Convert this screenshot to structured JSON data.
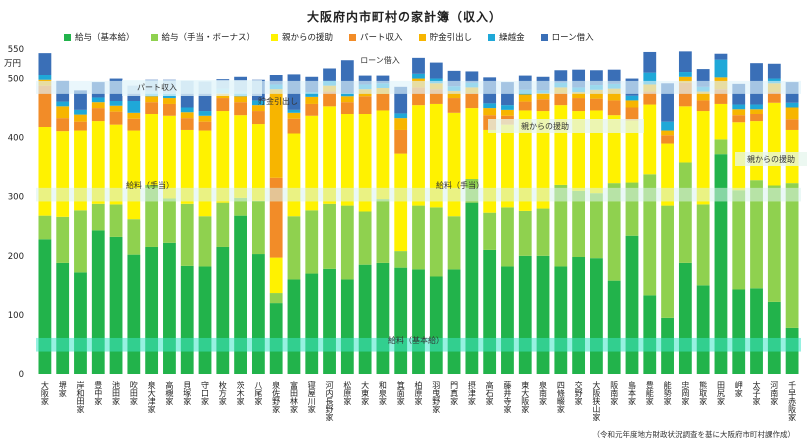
{
  "title": "大阪府内市町村の家計簿（収入）",
  "source_note": "（令和元年度地方財政状況調査を基に大阪府市町村課作成）",
  "unit_label": "万円",
  "colors": {
    "salary_base": "#22b34b",
    "salary_allowance": "#8fd14f",
    "parent_support": "#fff200",
    "part_income": "#f28c28",
    "savings_withdrawal": "#f7b500",
    "carryover": "#1fa8d8",
    "loan": "#3a6fb7"
  },
  "chart_data": {
    "type": "bar",
    "stacked": true,
    "title": "大阪府内市町村の家計簿（収入）",
    "ylabel": "万円",
    "ylim": [
      0,
      550
    ],
    "yticks": [
      0,
      100,
      200,
      300,
      400,
      500,
      550
    ],
    "grid": false,
    "legend_position": "top",
    "categories": [
      "大阪家",
      "堺家",
      "岸和田家",
      "豊中家",
      "池田家",
      "吹田家",
      "泉大津家",
      "高槻家",
      "貝塚家",
      "守口家",
      "枚方家",
      "茨木家",
      "八尾家",
      "泉佐野家",
      "富田林家",
      "寝屋川家",
      "河内長野家",
      "松原家",
      "大東家",
      "和泉家",
      "箕面家",
      "柏原家",
      "羽曳野家",
      "門真家",
      "摂津家",
      "高石家",
      "藤井寺家",
      "東大阪家",
      "泉南家",
      "四條畷家",
      "交野家",
      "大阪狭山家",
      "阪南家",
      "島本家",
      "豊能家",
      "能勢家",
      "忠岡家",
      "熊取家",
      "田尻家",
      "岬家",
      "太子家",
      "河南家",
      "千早赤阪家"
    ],
    "series": [
      {
        "name": "給与（基本給）",
        "color": "#22b34b",
        "values": [
          228,
          188,
          172,
          243,
          232,
          202,
          215,
          222,
          183,
          182,
          215,
          268,
          203,
          120,
          160,
          170,
          178,
          160,
          185,
          188,
          180,
          177,
          165,
          177,
          290,
          210,
          182,
          200,
          200,
          182,
          198,
          196,
          158,
          234,
          133,
          95,
          188,
          150,
          372,
          143,
          145,
          122,
          78
        ]
      },
      {
        "name": "給与（手当・ボーナス）",
        "color": "#8fd14f",
        "values": [
          40,
          78,
          105,
          45,
          55,
          60,
          105,
          75,
          105,
          85,
          75,
          30,
          90,
          17,
          107,
          107,
          110,
          125,
          90,
          108,
          28,
          108,
          117,
          90,
          40,
          63,
          100,
          76,
          80,
          138,
          112,
          110,
          165,
          90,
          205,
          190,
          170,
          137,
          25,
          168,
          183,
          197,
          245
        ]
      },
      {
        "name": "親からの援助",
        "color": "#fff200",
        "values": [
          150,
          145,
          135,
          140,
          135,
          150,
          120,
          140,
          125,
          145,
          155,
          140,
          130,
          60,
          140,
          160,
          165,
          155,
          165,
          150,
          165,
          170,
          175,
          175,
          120,
          140,
          140,
          170,
          165,
          135,
          135,
          140,
          115,
          105,
          118,
          105,
          95,
          158,
          60,
          115,
          100,
          140,
          90
        ]
      },
      {
        "name": "パート収入",
        "color": "#f28c28",
        "values": [
          70,
          22,
          15,
          22,
          22,
          20,
          20,
          20,
          20,
          15,
          22,
          22,
          22,
          135,
          25,
          20,
          25,
          20,
          30,
          28,
          40,
          30,
          25,
          25,
          25,
          25,
          15,
          15,
          20,
          20,
          22,
          20,
          25,
          22,
          22,
          14,
          40,
          18,
          25,
          12,
          12,
          18,
          18
        ]
      },
      {
        "name": "貯金引出し",
        "color": "#f7b500",
        "values": [
          10,
          20,
          12,
          10,
          10,
          10,
          10,
          10,
          10,
          10,
          8,
          10,
          10,
          150,
          10,
          12,
          10,
          10,
          12,
          10,
          20,
          15,
          10,
          12,
          10,
          12,
          10,
          12,
          10,
          10,
          10,
          15,
          20,
          12,
          12,
          8,
          10,
          15,
          20,
          10,
          8,
          15,
          20
        ]
      },
      {
        "name": "繰越金",
        "color": "#1fa8d8",
        "values": [
          8,
          8,
          8,
          8,
          8,
          20,
          8,
          8,
          8,
          8,
          8,
          8,
          8,
          8,
          5,
          8,
          8,
          5,
          8,
          8,
          8,
          8,
          8,
          8,
          8,
          8,
          8,
          8,
          5,
          8,
          8,
          8,
          8,
          8,
          20,
          15,
          8,
          8,
          30,
          8,
          8,
          8,
          8
        ]
      },
      {
        "name": "ローン借入",
        "color": "#3a6fb7",
        "values": [
          37,
          35,
          33,
          26,
          38,
          26,
          20,
          23,
          45,
          50,
          16,
          25,
          35,
          16,
          60,
          26,
          21,
          56,
          15,
          13,
          45,
          27,
          27,
          26,
          19,
          44,
          39,
          24,
          23,
          21,
          30,
          25,
          24,
          29,
          35,
          65,
          35,
          30,
          10,
          35,
          70,
          25,
          35
        ]
      }
    ],
    "annotations": [
      "ローン借入",
      "パート収入",
      "貯金引出し",
      "親からの援助",
      "親からの援助",
      "給料（手当）",
      "給料（手当）",
      "給料（基本給）"
    ]
  }
}
